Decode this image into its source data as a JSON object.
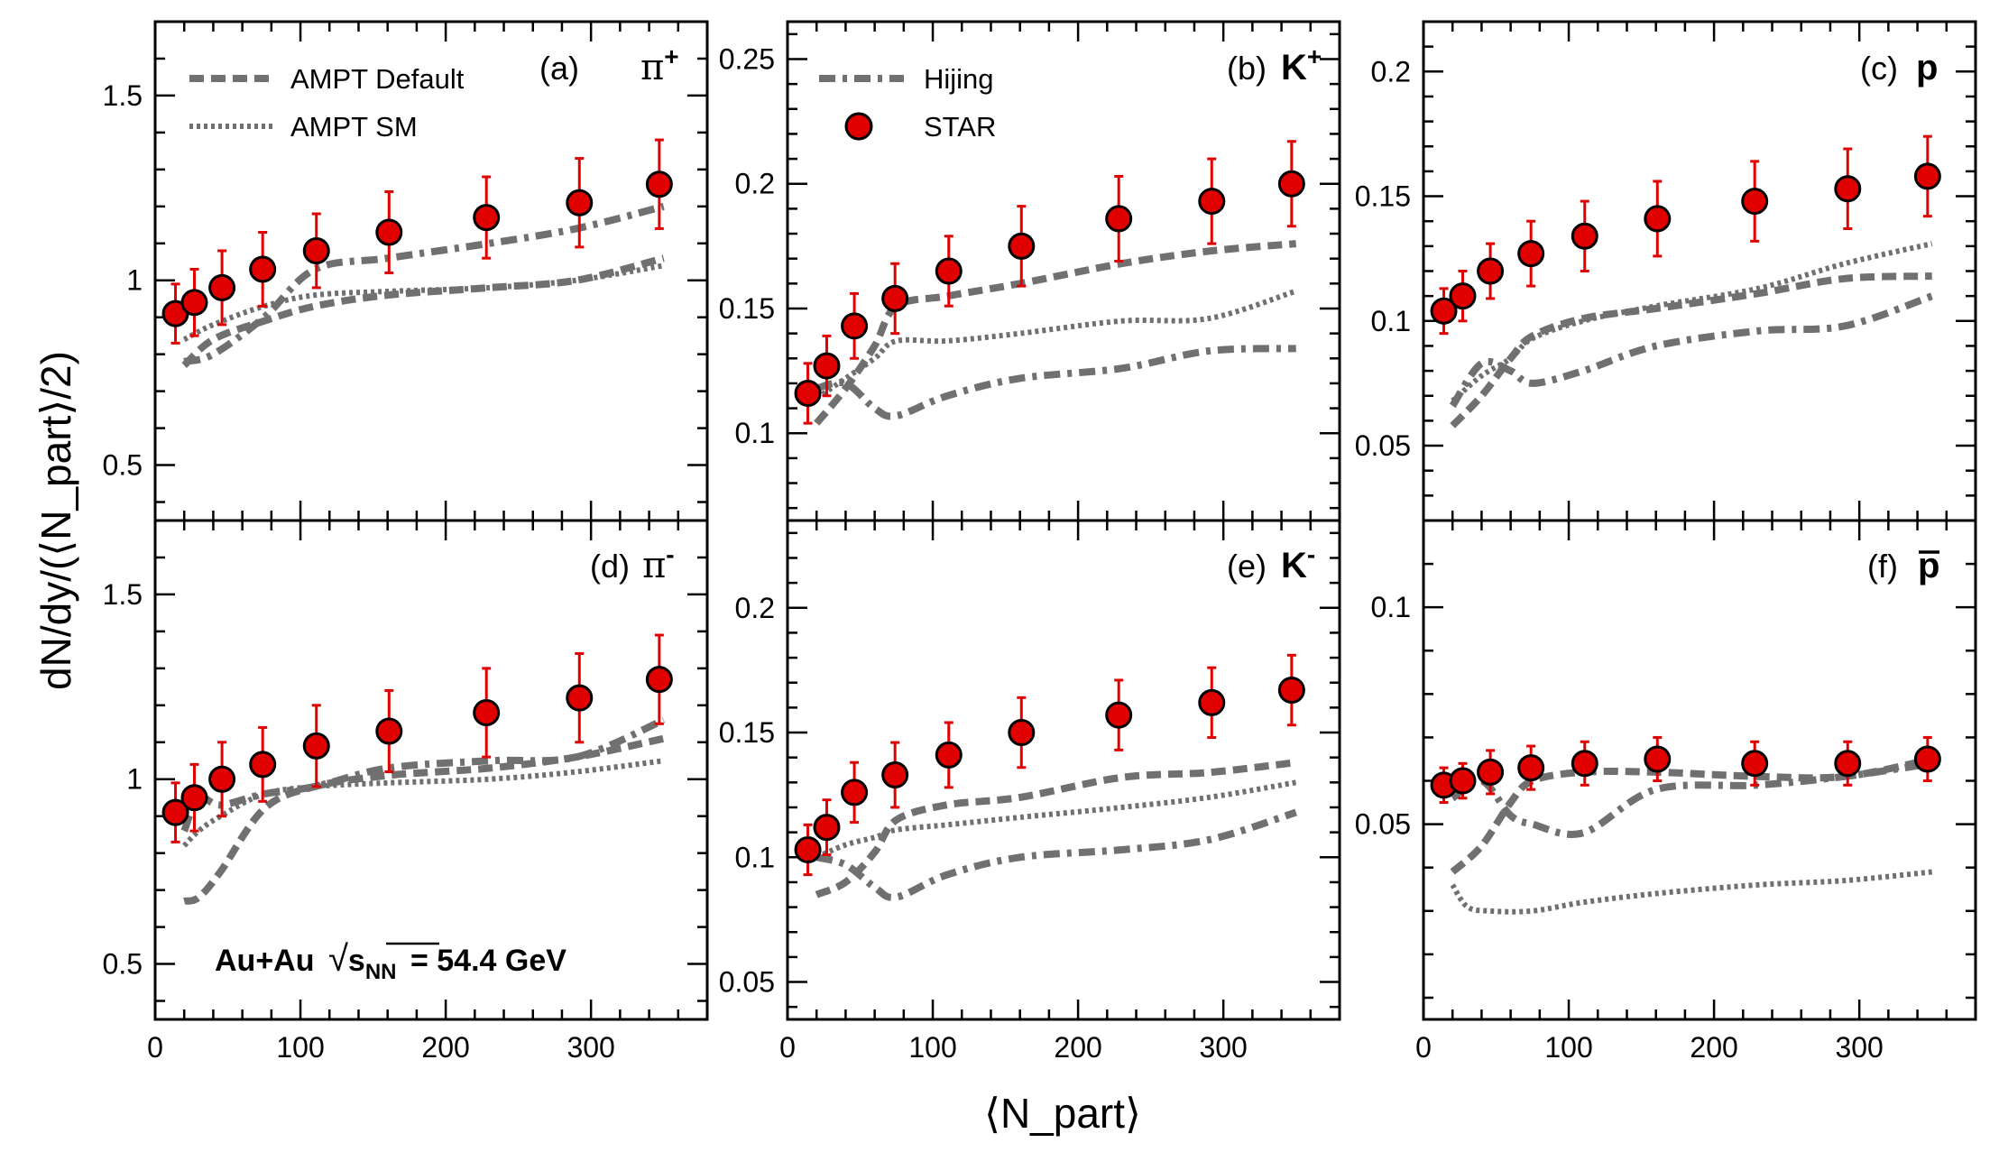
{
  "y_axis_label": "dN/dy/(⟨N_part⟩/2)",
  "x_axis_label": "⟨N_part⟩",
  "system_label": {
    "prefix": "Au+Au",
    "sqrt": "√",
    "s": "s",
    "sub": "NN",
    "suffix": "= 54.4 GeV"
  },
  "legend": {
    "ampt_default": "AMPT Default",
    "ampt_sm": "AMPT SM",
    "hijing": "Hijing",
    "star": "STAR"
  },
  "colors": {
    "star_fill": "#e00000",
    "star_error": "#e00000",
    "model_line": "#707070",
    "frame": "#000000"
  },
  "chart_data": [
    {
      "type": "scatter",
      "panel": "(a)",
      "particle": "π",
      "charge": "+",
      "xlim": [
        0,
        380
      ],
      "ylim": [
        0.35,
        1.7
      ],
      "x_ticks": [
        0,
        100,
        200,
        300
      ],
      "y_ticks": [
        0.5,
        1,
        1.5
      ],
      "y_tick_labels": [
        "0.5",
        "1",
        "1.5"
      ],
      "star": {
        "x": [
          14,
          27,
          46,
          74,
          111,
          161,
          228,
          292,
          347
        ],
        "y": [
          0.91,
          0.94,
          0.98,
          1.03,
          1.08,
          1.13,
          1.17,
          1.21,
          1.26
        ],
        "err": [
          0.08,
          0.09,
          0.1,
          0.1,
          0.1,
          0.11,
          0.11,
          0.12,
          0.12
        ]
      },
      "ampt_default": {
        "x": [
          20,
          40,
          75,
          110,
          160,
          230,
          290,
          350
        ],
        "y": [
          0.77,
          0.84,
          0.89,
          0.93,
          0.96,
          0.98,
          1.0,
          1.06
        ]
      },
      "ampt_sm": {
        "x": [
          20,
          40,
          75,
          110,
          160,
          230,
          290,
          350
        ],
        "y": [
          0.84,
          0.88,
          0.93,
          0.96,
          0.97,
          0.98,
          1.0,
          1.04
        ]
      },
      "hijing": {
        "x": [
          20,
          40,
          75,
          110,
          160,
          230,
          290,
          350
        ],
        "y": [
          0.78,
          0.8,
          0.9,
          1.03,
          1.06,
          1.1,
          1.14,
          1.2
        ]
      }
    },
    {
      "type": "scatter",
      "panel": "(b)",
      "particle": "K",
      "charge": "+",
      "xlim": [
        0,
        380
      ],
      "ylim": [
        0.065,
        0.265
      ],
      "x_ticks": [
        0,
        100,
        200,
        300
      ],
      "y_ticks": [
        0.1,
        0.15,
        0.2,
        0.25
      ],
      "y_tick_labels": [
        "0.1",
        "0.15",
        "0.2",
        "0.25"
      ],
      "star": {
        "x": [
          14,
          27,
          46,
          74,
          111,
          161,
          228,
          292,
          347
        ],
        "y": [
          0.116,
          0.127,
          0.143,
          0.154,
          0.165,
          0.175,
          0.186,
          0.193,
          0.2
        ],
        "err": [
          0.012,
          0.012,
          0.013,
          0.014,
          0.014,
          0.016,
          0.017,
          0.017,
          0.017
        ]
      },
      "ampt_default": {
        "x": [
          20,
          40,
          60,
          75,
          110,
          160,
          230,
          290,
          350
        ],
        "y": [
          0.104,
          0.118,
          0.135,
          0.151,
          0.155,
          0.16,
          0.168,
          0.173,
          0.176
        ]
      },
      "ampt_sm": {
        "x": [
          20,
          40,
          60,
          75,
          110,
          160,
          230,
          290,
          350
        ],
        "y": [
          0.114,
          0.122,
          0.13,
          0.137,
          0.137,
          0.14,
          0.145,
          0.146,
          0.157
        ]
      },
      "hijing": {
        "x": [
          20,
          40,
          60,
          75,
          110,
          160,
          230,
          290,
          350
        ],
        "y": [
          0.118,
          0.12,
          0.11,
          0.107,
          0.115,
          0.122,
          0.126,
          0.133,
          0.134
        ]
      }
    },
    {
      "type": "scatter",
      "panel": "(c)",
      "particle": "p",
      "charge": "",
      "xlim": [
        0,
        380
      ],
      "ylim": [
        0.02,
        0.22
      ],
      "x_ticks": [
        0,
        100,
        200,
        300
      ],
      "y_ticks": [
        0.05,
        0.1,
        0.15,
        0.2
      ],
      "y_tick_labels": [
        "0.05",
        "0.1",
        "0.15",
        "0.2"
      ],
      "star": {
        "x": [
          14,
          27,
          46,
          74,
          111,
          161,
          228,
          292,
          347
        ],
        "y": [
          0.104,
          0.11,
          0.12,
          0.127,
          0.134,
          0.141,
          0.148,
          0.153,
          0.158
        ],
        "err": [
          0.009,
          0.01,
          0.011,
          0.013,
          0.014,
          0.015,
          0.016,
          0.016,
          0.016
        ]
      },
      "ampt_default": {
        "x": [
          20,
          40,
          60,
          75,
          110,
          160,
          230,
          290,
          350
        ],
        "y": [
          0.058,
          0.07,
          0.085,
          0.094,
          0.101,
          0.105,
          0.111,
          0.117,
          0.118
        ]
      },
      "ampt_sm": {
        "x": [
          20,
          40,
          60,
          75,
          110,
          160,
          230,
          290,
          350
        ],
        "y": [
          0.068,
          0.078,
          0.085,
          0.093,
          0.1,
          0.106,
          0.113,
          0.123,
          0.131
        ]
      },
      "hijing": {
        "x": [
          20,
          40,
          60,
          75,
          110,
          160,
          230,
          290,
          350
        ],
        "y": [
          0.066,
          0.083,
          0.08,
          0.075,
          0.08,
          0.09,
          0.096,
          0.098,
          0.11
        ]
      }
    },
    {
      "type": "scatter",
      "panel": "(d)",
      "particle": "π",
      "charge": "-",
      "xlim": [
        0,
        380
      ],
      "ylim": [
        0.35,
        1.7
      ],
      "x_ticks": [
        0,
        100,
        200,
        300
      ],
      "y_ticks": [
        0.5,
        1,
        1.5
      ],
      "y_tick_labels": [
        "0.5",
        "1",
        "1.5"
      ],
      "star": {
        "x": [
          14,
          27,
          46,
          74,
          111,
          161,
          228,
          292,
          347
        ],
        "y": [
          0.91,
          0.95,
          1.0,
          1.04,
          1.09,
          1.13,
          1.18,
          1.22,
          1.27
        ],
        "err": [
          0.08,
          0.09,
          0.1,
          0.1,
          0.11,
          0.11,
          0.12,
          0.12,
          0.12
        ]
      },
      "ampt_default": {
        "x": [
          20,
          30,
          45,
          75,
          110,
          160,
          230,
          290,
          350
        ],
        "y": [
          0.67,
          0.68,
          0.75,
          0.92,
          0.98,
          1.01,
          1.03,
          1.06,
          1.11
        ]
      },
      "ampt_sm": {
        "x": [
          20,
          30,
          45,
          75,
          110,
          160,
          230,
          290,
          350
        ],
        "y": [
          0.82,
          0.86,
          0.9,
          0.96,
          0.98,
          0.99,
          1.0,
          1.02,
          1.05
        ]
      },
      "hijing": {
        "x": [
          20,
          30,
          45,
          75,
          110,
          160,
          230,
          290,
          350
        ],
        "y": [
          0.86,
          0.95,
          0.93,
          0.96,
          0.98,
          1.03,
          1.05,
          1.06,
          1.16
        ]
      }
    },
    {
      "type": "scatter",
      "panel": "(e)",
      "particle": "K",
      "charge": "-",
      "xlim": [
        0,
        380
      ],
      "ylim": [
        0.035,
        0.235
      ],
      "x_ticks": [
        0,
        100,
        200,
        300
      ],
      "y_ticks": [
        0.05,
        0.1,
        0.15,
        0.2
      ],
      "y_tick_labels": [
        "0.05",
        "0.1",
        "0.15",
        "0.2"
      ],
      "star": {
        "x": [
          14,
          27,
          46,
          74,
          111,
          161,
          228,
          292,
          347
        ],
        "y": [
          0.103,
          0.112,
          0.126,
          0.133,
          0.141,
          0.15,
          0.157,
          0.162,
          0.167
        ],
        "err": [
          0.01,
          0.011,
          0.012,
          0.013,
          0.013,
          0.014,
          0.014,
          0.014,
          0.014
        ]
      },
      "ampt_default": {
        "x": [
          20,
          40,
          60,
          75,
          110,
          160,
          230,
          290,
          350
        ],
        "y": [
          0.085,
          0.09,
          0.102,
          0.115,
          0.121,
          0.124,
          0.132,
          0.134,
          0.138
        ]
      },
      "ampt_sm": {
        "x": [
          20,
          40,
          60,
          75,
          110,
          160,
          230,
          290,
          350
        ],
        "y": [
          0.1,
          0.105,
          0.108,
          0.111,
          0.113,
          0.116,
          0.12,
          0.124,
          0.13
        ]
      },
      "hijing": {
        "x": [
          20,
          40,
          60,
          75,
          110,
          160,
          230,
          290,
          350
        ],
        "y": [
          0.1,
          0.097,
          0.088,
          0.084,
          0.093,
          0.1,
          0.103,
          0.107,
          0.118
        ]
      }
    },
    {
      "type": "scatter",
      "panel": "(f)",
      "particle": "p",
      "charge": "bar",
      "xlim": [
        0,
        380
      ],
      "ylim": [
        0.005,
        0.12
      ],
      "x_ticks": [
        0,
        100,
        200,
        300
      ],
      "y_ticks": [
        0.05,
        0.1
      ],
      "y_tick_labels": [
        "0.05",
        "0.1"
      ],
      "star": {
        "x": [
          14,
          27,
          46,
          74,
          111,
          161,
          228,
          292,
          347
        ],
        "y": [
          0.059,
          0.06,
          0.062,
          0.063,
          0.064,
          0.065,
          0.064,
          0.064,
          0.065
        ],
        "err": [
          0.004,
          0.004,
          0.005,
          0.005,
          0.005,
          0.005,
          0.005,
          0.005,
          0.005
        ]
      },
      "ampt_default": {
        "x": [
          20,
          40,
          60,
          75,
          110,
          160,
          230,
          290,
          350
        ],
        "y": [
          0.039,
          0.045,
          0.055,
          0.06,
          0.062,
          0.062,
          0.061,
          0.061,
          0.065
        ]
      },
      "ampt_sm": {
        "x": [
          20,
          30,
          45,
          75,
          110,
          160,
          230,
          290,
          350
        ],
        "y": [
          0.036,
          0.031,
          0.03,
          0.03,
          0.032,
          0.034,
          0.036,
          0.037,
          0.039
        ]
      },
      "hijing": {
        "x": [
          20,
          40,
          60,
          75,
          110,
          160,
          230,
          290,
          350
        ],
        "y": [
          0.056,
          0.06,
          0.052,
          0.05,
          0.048,
          0.058,
          0.059,
          0.061,
          0.064
        ]
      }
    }
  ]
}
